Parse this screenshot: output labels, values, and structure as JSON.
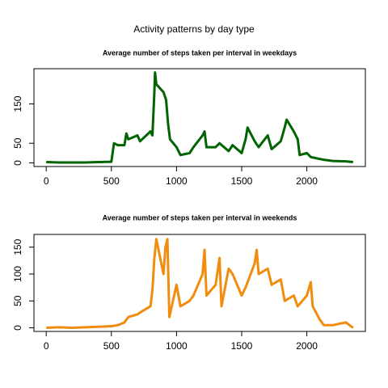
{
  "title": "Activity patterns by day type",
  "chart_data": [
    {
      "type": "line",
      "title": "Average number of steps taken per interval in weekdays",
      "xlim": [
        -94.2,
        2449.2
      ],
      "xticks": [
        0,
        500,
        1000,
        1500,
        2000
      ],
      "ylim": [
        -9.2,
        239.6
      ],
      "yticks": [
        0,
        50,
        150
      ],
      "x": [
        0,
        100,
        200,
        300,
        400,
        500,
        520,
        550,
        600,
        615,
        630,
        700,
        720,
        800,
        815,
        830,
        835,
        845,
        900,
        920,
        935,
        950,
        1000,
        1030,
        1100,
        1130,
        1200,
        1215,
        1230,
        1300,
        1330,
        1400,
        1430,
        1500,
        1530,
        1545,
        1600,
        1630,
        1700,
        1730,
        1800,
        1830,
        1845,
        1900,
        1930,
        1945,
        2000,
        2030,
        2100,
        2130,
        2200,
        2300,
        2355
      ],
      "series": [
        {
          "name": "weekdays",
          "color": "#006400",
          "values": [
            2,
            1,
            1,
            1,
            2,
            3,
            50,
            45,
            45,
            75,
            60,
            70,
            55,
            80,
            70,
            180,
            230,
            200,
            180,
            160,
            100,
            60,
            40,
            20,
            25,
            40,
            70,
            80,
            40,
            40,
            50,
            30,
            45,
            25,
            60,
            90,
            55,
            40,
            70,
            35,
            55,
            90,
            110,
            80,
            60,
            20,
            25,
            15,
            10,
            8,
            5,
            4,
            2
          ]
        }
      ]
    },
    {
      "type": "line",
      "title": "Average number of steps taken per interval in weekends",
      "xlim": [
        -94.2,
        2449.2
      ],
      "xticks": [
        0,
        500,
        1000,
        1500,
        2000
      ],
      "ylim": [
        -6.7,
        173.7
      ],
      "yticks": [
        0,
        50,
        100,
        150
      ],
      "x": [
        0,
        100,
        200,
        300,
        400,
        500,
        550,
        600,
        630,
        700,
        730,
        800,
        815,
        830,
        845,
        900,
        915,
        930,
        945,
        1000,
        1030,
        1100,
        1130,
        1200,
        1215,
        1230,
        1300,
        1330,
        1345,
        1400,
        1430,
        1500,
        1530,
        1600,
        1615,
        1630,
        1700,
        1730,
        1800,
        1830,
        1900,
        1930,
        2000,
        2030,
        2045,
        2100,
        2130,
        2200,
        2300,
        2355
      ],
      "series": [
        {
          "name": "weekends",
          "color": "#f28c0f",
          "values": [
            0,
            1,
            0,
            1,
            2,
            3,
            5,
            10,
            20,
            25,
            30,
            40,
            70,
            130,
            165,
            100,
            150,
            165,
            20,
            80,
            40,
            50,
            60,
            100,
            145,
            60,
            80,
            130,
            40,
            110,
            100,
            60,
            75,
            120,
            145,
            100,
            110,
            80,
            90,
            50,
            60,
            40,
            60,
            85,
            40,
            15,
            5,
            5,
            10,
            0
          ]
        }
      ]
    }
  ]
}
